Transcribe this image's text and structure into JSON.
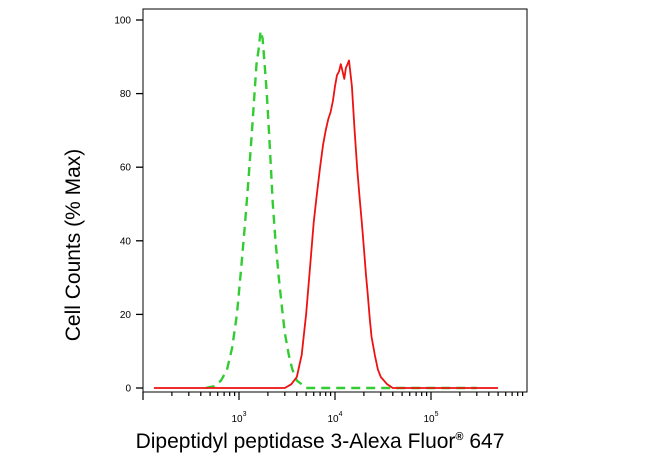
{
  "chart_data": {
    "type": "line",
    "title": "",
    "xlabel_main": "Dipeptidyl peptidase 3-Alexa Fluor",
    "xlabel_sup": "®",
    "xlabel_tail": " 647",
    "ylabel": "Cell Counts (% Max)",
    "x_scale": "log",
    "xlim": [
      100,
      1000000
    ],
    "ylim": [
      0,
      100
    ],
    "x_ticks": [
      {
        "base": "10",
        "exp": "3",
        "value": 1000
      },
      {
        "base": "10",
        "exp": "4",
        "value": 10000
      },
      {
        "base": "10",
        "exp": "5",
        "value": 100000
      }
    ],
    "y_ticks": [
      "0",
      "20",
      "40",
      "60",
      "80",
      "100"
    ],
    "grid": false,
    "legend": "none",
    "series": [
      {
        "color": "#33cc33",
        "dash": "dashed",
        "x": [
          450,
          550,
          650,
          750,
          850,
          950,
          1050,
          1150,
          1250,
          1350,
          1450,
          1520,
          1600,
          1680,
          1760,
          1850,
          1950,
          2050,
          2150,
          2250,
          2400,
          2600,
          2800,
          3000,
          3300,
          3600,
          4000,
          4500,
          5000,
          7000,
          10000,
          20000,
          50000,
          100000,
          300000
        ],
        "y": [
          0,
          0.5,
          2,
          5,
          11,
          20,
          32,
          44,
          56,
          68,
          80,
          88,
          92,
          97,
          95,
          88,
          80,
          70,
          60,
          50,
          40,
          30,
          22,
          15,
          9,
          5,
          2,
          1,
          0,
          0,
          0,
          0,
          0,
          0,
          0
        ]
      },
      {
        "color": "#ee1111",
        "dash": "solid",
        "x": [
          130,
          500,
          1000,
          2000,
          3000,
          3500,
          4000,
          4500,
          5000,
          5500,
          6000,
          6500,
          7000,
          7500,
          8000,
          8500,
          9000,
          9500,
          10000,
          10500,
          11000,
          11500,
          12000,
          12500,
          13000,
          13500,
          14000,
          15000,
          16000,
          17000,
          18000,
          19000,
          20000,
          21000,
          22000,
          23000,
          24000,
          26000,
          28000,
          30000,
          35000,
          40000,
          50000,
          100000,
          500000
        ],
        "y": [
          0,
          0,
          0,
          0,
          0,
          1,
          3,
          9,
          20,
          33,
          45,
          53,
          60,
          66,
          70,
          73,
          75,
          78,
          82,
          85,
          86,
          88,
          86,
          84,
          87,
          88,
          89,
          82,
          70,
          60,
          52,
          45,
          38,
          31,
          25,
          19,
          14,
          9,
          5,
          3,
          1,
          0,
          0,
          0,
          0
        ]
      }
    ]
  }
}
